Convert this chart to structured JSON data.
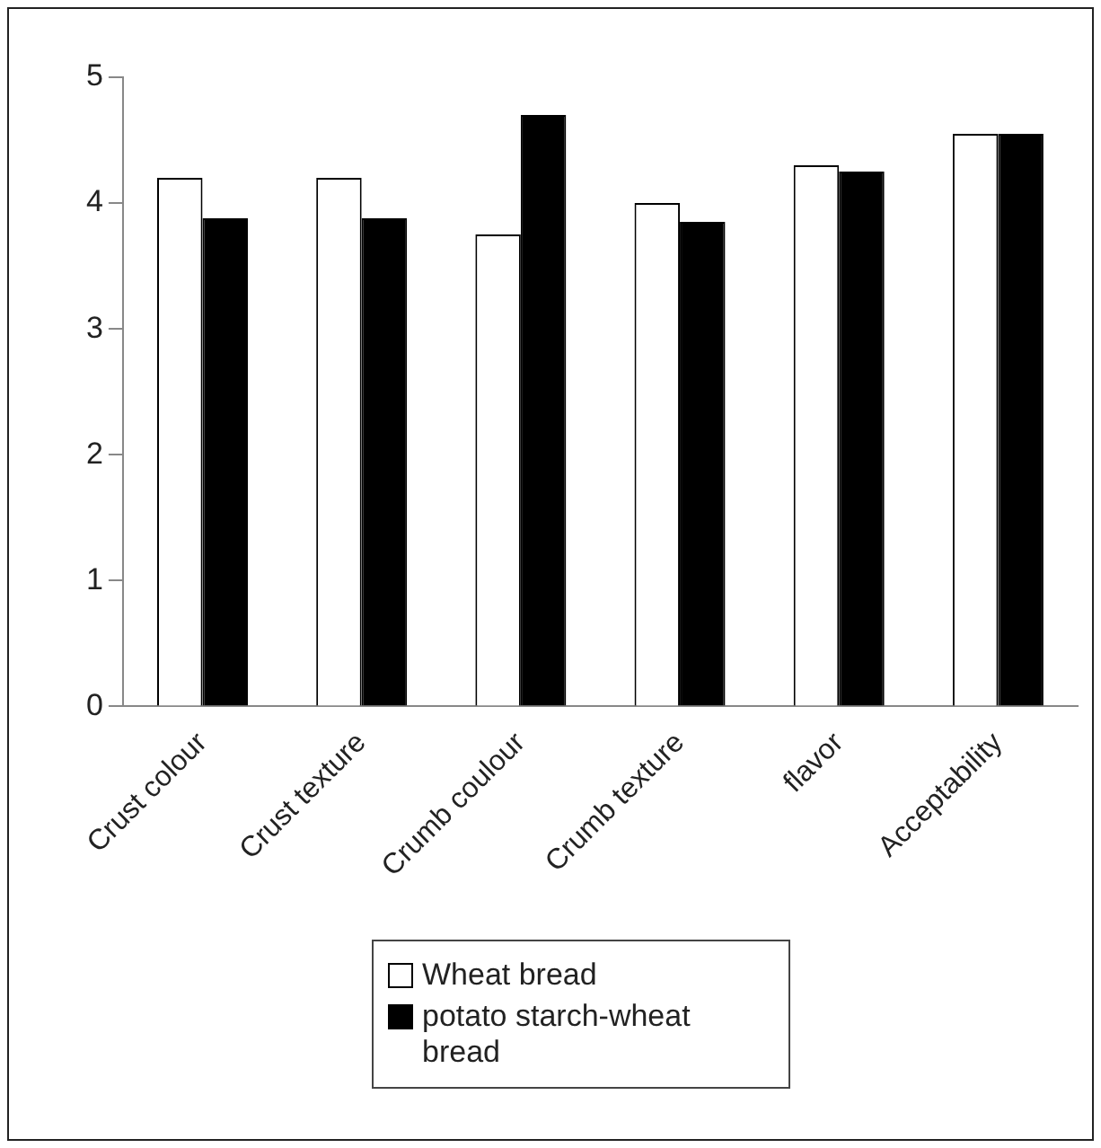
{
  "chart_data": {
    "type": "bar",
    "categories": [
      "Crust colour",
      "Crust texture",
      "Crumb coulour",
      "Crumb texture",
      "flavor",
      "Acceptability"
    ],
    "series": [
      {
        "name": "Wheat bread",
        "color": "#ffffff",
        "values": [
          4.2,
          4.2,
          3.75,
          4.0,
          4.3,
          4.55
        ]
      },
      {
        "name": "potato starch-wheat bread",
        "color": "#000000",
        "values": [
          3.88,
          3.88,
          4.7,
          3.85,
          4.25,
          4.55
        ]
      }
    ],
    "ylim": [
      0,
      5
    ],
    "yticks": [
      0,
      1,
      2,
      3,
      4,
      5
    ],
    "grid": false,
    "legend": "bottom"
  }
}
